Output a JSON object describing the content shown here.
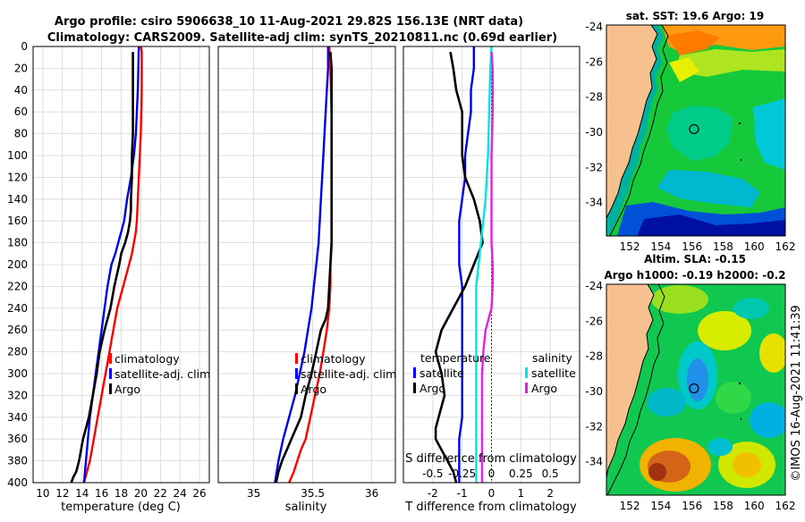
{
  "title": {
    "line1": "Argo profile: csiro 5906638_10 11-Aug-2021 29.82S 156.13E (NRT data)",
    "line2": "Climatology: CARS2009. Satellite-adj clim: synTS_20210811.nc (0.69d earlier)"
  },
  "footer_stamp": "©IMOS 16-Aug-2021 11:41:39",
  "colors": {
    "clim": "#ff0000",
    "sat": "#0000ee",
    "argo": "#000000",
    "sal_sat": "#00e5e5",
    "sal_argo": "#e81ee8"
  },
  "chart_data": [
    {
      "type": "line",
      "name": "temperature",
      "xlabel": "temperature (deg C)",
      "ylabel": "",
      "xlim": [
        9,
        27
      ],
      "ylim": [
        400,
        0
      ],
      "xticks": [
        "10",
        "12",
        "14",
        "16",
        "18",
        "20",
        "22",
        "24",
        "26"
      ],
      "xtick_values": [
        10,
        12,
        14,
        16,
        18,
        20,
        22,
        24,
        26
      ],
      "yticks": [
        "0",
        "20",
        "40",
        "60",
        "80",
        "100",
        "120",
        "140",
        "160",
        "180",
        "200",
        "220",
        "240",
        "260",
        "280",
        "300",
        "320",
        "340",
        "360",
        "380",
        "400"
      ],
      "ytick_values": [
        0,
        20,
        40,
        60,
        80,
        100,
        120,
        140,
        160,
        180,
        200,
        220,
        240,
        260,
        280,
        300,
        320,
        340,
        360,
        380,
        400
      ],
      "grid": true,
      "legend": [
        "climatology",
        "satellite-adj. clim",
        "Argo"
      ],
      "legend_position": "bottom-right",
      "series": [
        {
          "name": "climatology",
          "color_key": "clim",
          "x": [
            20.0,
            20.1,
            20.1,
            20.0,
            19.9,
            19.8,
            19.7,
            19.6,
            19.5,
            19.3,
            19.1,
            18.8,
            18.5,
            18.2,
            17.9,
            17.6,
            17.2,
            16.8,
            16.4,
            16.0,
            15.6,
            15.2,
            14.8,
            14.5,
            14.2
          ],
          "y": [
            0,
            5,
            40,
            80,
            100,
            120,
            140,
            160,
            170,
            180,
            190,
            200,
            210,
            220,
            230,
            240,
            260,
            280,
            300,
            320,
            340,
            360,
            380,
            390,
            400
          ]
        },
        {
          "name": "satellite-adj. clim",
          "color_key": "sat",
          "x": [
            19.8,
            19.7,
            19.5,
            19.3,
            19.0,
            18.6,
            18.3,
            18.0,
            17.7,
            17.4,
            17.0,
            16.6,
            16.3,
            16.0,
            15.7,
            15.4,
            15.1,
            14.8,
            14.5,
            14.2
          ],
          "y": [
            0,
            40,
            80,
            100,
            120,
            140,
            160,
            170,
            180,
            190,
            200,
            220,
            240,
            260,
            280,
            300,
            320,
            340,
            370,
            400
          ]
        },
        {
          "name": "Argo",
          "color_key": "argo",
          "x": [
            19.2,
            19.2,
            19.2,
            19.1,
            19.1,
            19.0,
            19.0,
            18.9,
            18.7,
            18.4,
            18.0,
            17.8,
            17.3,
            16.9,
            16.6,
            16.3,
            15.8,
            15.5,
            15.1,
            14.7,
            14.4,
            14.1,
            13.7,
            13.4,
            13.1,
            12.9
          ],
          "y": [
            5,
            40,
            80,
            100,
            120,
            140,
            150,
            160,
            170,
            180,
            190,
            200,
            220,
            240,
            250,
            260,
            280,
            300,
            320,
            340,
            350,
            360,
            380,
            390,
            395,
            400
          ]
        }
      ]
    },
    {
      "type": "line",
      "name": "salinity",
      "xlabel": "salinity",
      "xlim": [
        34.7,
        36.2
      ],
      "ylim": [
        400,
        0
      ],
      "xticks": [
        "35",
        "35.5",
        "36"
      ],
      "xtick_values": [
        35,
        35.5,
        36
      ],
      "grid": true,
      "legend": [
        "climatology",
        "satellite-adj. clim",
        "Argo"
      ],
      "legend_position": "bottom-right",
      "series": [
        {
          "name": "climatology",
          "color_key": "clim",
          "x": [
            35.64,
            35.65,
            35.66,
            35.66,
            35.66,
            35.66,
            35.65,
            35.65,
            35.64,
            35.62,
            35.59,
            35.56,
            35.52,
            35.48,
            35.44,
            35.4,
            35.37,
            35.34,
            35.3
          ],
          "y": [
            0,
            20,
            60,
            100,
            140,
            180,
            200,
            220,
            240,
            260,
            280,
            300,
            320,
            340,
            360,
            370,
            380,
            390,
            400
          ]
        },
        {
          "name": "satellite-adj. clim",
          "color_key": "sat",
          "x": [
            35.63,
            35.63,
            35.62,
            35.61,
            35.6,
            35.59,
            35.58,
            35.57,
            35.56,
            35.55,
            35.53,
            35.51,
            35.49,
            35.46,
            35.43,
            35.39,
            35.35,
            35.3,
            35.25,
            35.21,
            35.18
          ],
          "y": [
            0,
            20,
            40,
            60,
            80,
            100,
            120,
            140,
            160,
            180,
            200,
            220,
            240,
            260,
            280,
            300,
            320,
            340,
            360,
            380,
            400
          ]
        },
        {
          "name": "Argo",
          "color_key": "argo",
          "x": [
            35.65,
            35.66,
            35.66,
            35.66,
            35.66,
            35.66,
            35.65,
            35.64,
            35.63,
            35.61,
            35.57,
            35.53,
            35.49,
            35.44,
            35.4,
            35.36,
            35.32,
            35.28,
            35.24,
            35.21,
            35.19
          ],
          "y": [
            5,
            20,
            60,
            100,
            140,
            180,
            200,
            220,
            240,
            250,
            260,
            280,
            300,
            320,
            340,
            350,
            360,
            370,
            380,
            390,
            400
          ]
        }
      ]
    },
    {
      "type": "line",
      "name": "difference",
      "xlabel": "T difference from climatology",
      "xlabel2": "S difference from climatology",
      "xlim": [
        -3,
        3
      ],
      "ylim": [
        400,
        0
      ],
      "xticks": [
        "-2",
        "-1",
        "0",
        "1",
        "2"
      ],
      "xtick_values": [
        -2,
        -1,
        0,
        1,
        2
      ],
      "sticks": [
        "-0.5",
        "-0.25",
        "0",
        "0.25",
        "0.5"
      ],
      "stick_values": [
        -0.5,
        -0.25,
        0,
        0.25,
        0.5
      ],
      "s_scale": 4,
      "grid": true,
      "legend_temperature": {
        "heading": "temperature",
        "items": [
          "satellite",
          "Argo"
        ]
      },
      "legend_salinity": {
        "heading": "salinity",
        "items": [
          "satellite",
          "Argo"
        ]
      },
      "series": [
        {
          "name": "T satellite",
          "color_key": "sat",
          "x": [
            -0.6,
            -0.6,
            -0.7,
            -0.7,
            -0.8,
            -0.9,
            -0.9,
            -1.0,
            -1.1,
            -1.1,
            -1.1,
            -1.0,
            -1.0,
            -1.0,
            -1.0,
            -1.0,
            -1.0,
            -1.1,
            -1.1,
            -1.1
          ],
          "y": [
            0,
            20,
            40,
            60,
            80,
            100,
            120,
            140,
            160,
            180,
            200,
            220,
            260,
            280,
            300,
            320,
            340,
            360,
            380,
            400
          ]
        },
        {
          "name": "T Argo",
          "color_key": "argo",
          "x": [
            -1.4,
            -1.3,
            -1.2,
            -1.0,
            -1.0,
            -1.0,
            -0.9,
            -0.6,
            -0.4,
            -0.3,
            -0.6,
            -0.9,
            -1.3,
            -1.7,
            -1.9,
            -1.8,
            -1.7,
            -1.6,
            -1.7,
            -1.8,
            -1.9,
            -1.9,
            -1.7,
            -1.5,
            -1.3,
            -1.2
          ],
          "y": [
            5,
            20,
            40,
            60,
            80,
            100,
            120,
            140,
            160,
            180,
            200,
            220,
            240,
            260,
            280,
            290,
            300,
            320,
            330,
            340,
            350,
            360,
            370,
            380,
            390,
            400
          ]
        },
        {
          "name": "S satellite",
          "color_key": "sal_sat",
          "x": [
            0.0,
            -0.01,
            -0.02,
            -0.03,
            -0.05,
            -0.07,
            -0.09,
            -0.11,
            -0.13,
            -0.13,
            -0.13,
            -0.13,
            -0.13,
            -0.13,
            -0.13
          ],
          "y": [
            0,
            20,
            60,
            100,
            140,
            160,
            180,
            200,
            220,
            240,
            260,
            300,
            340,
            380,
            400
          ],
          "scale_s": true
        },
        {
          "name": "S Argo",
          "color_key": "sal_argo",
          "x": [
            0.0,
            0.01,
            0.01,
            0.0,
            0.0,
            0.0,
            0.01,
            0.01,
            0.0,
            -0.05,
            -0.07,
            -0.08,
            -0.08,
            -0.08
          ],
          "y": [
            5,
            20,
            60,
            100,
            140,
            180,
            200,
            220,
            240,
            260,
            280,
            300,
            320,
            400
          ],
          "scale_s": true
        }
      ]
    },
    {
      "type": "heatmap",
      "name": "sst_map",
      "title": "sat. SST: 19.6 Argo: 19",
      "xticks": [
        "152",
        "154",
        "156",
        "158",
        "160",
        "162"
      ],
      "yticks": [
        "-24",
        "-26",
        "-28",
        "-30",
        "-32",
        "-34"
      ],
      "xlim": [
        150.5,
        162
      ],
      "ylim": [
        -23.9,
        -35.9
      ],
      "marker": {
        "lon": 156.13,
        "lat": -29.82
      }
    },
    {
      "type": "heatmap",
      "name": "sla_map",
      "title_line1": "Altim. SLA: -0.15",
      "title_line2": "Argo h1000: -0.19 h2000: -0.2",
      "xticks": [
        "152",
        "154",
        "156",
        "158",
        "160",
        "162"
      ],
      "yticks": [
        "-24",
        "-26",
        "-28",
        "-30",
        "-32",
        "-34"
      ],
      "xlim": [
        150.5,
        162
      ],
      "ylim": [
        -23.9,
        -35.9
      ],
      "marker": {
        "lon": 156.13,
        "lat": -29.82
      }
    }
  ]
}
